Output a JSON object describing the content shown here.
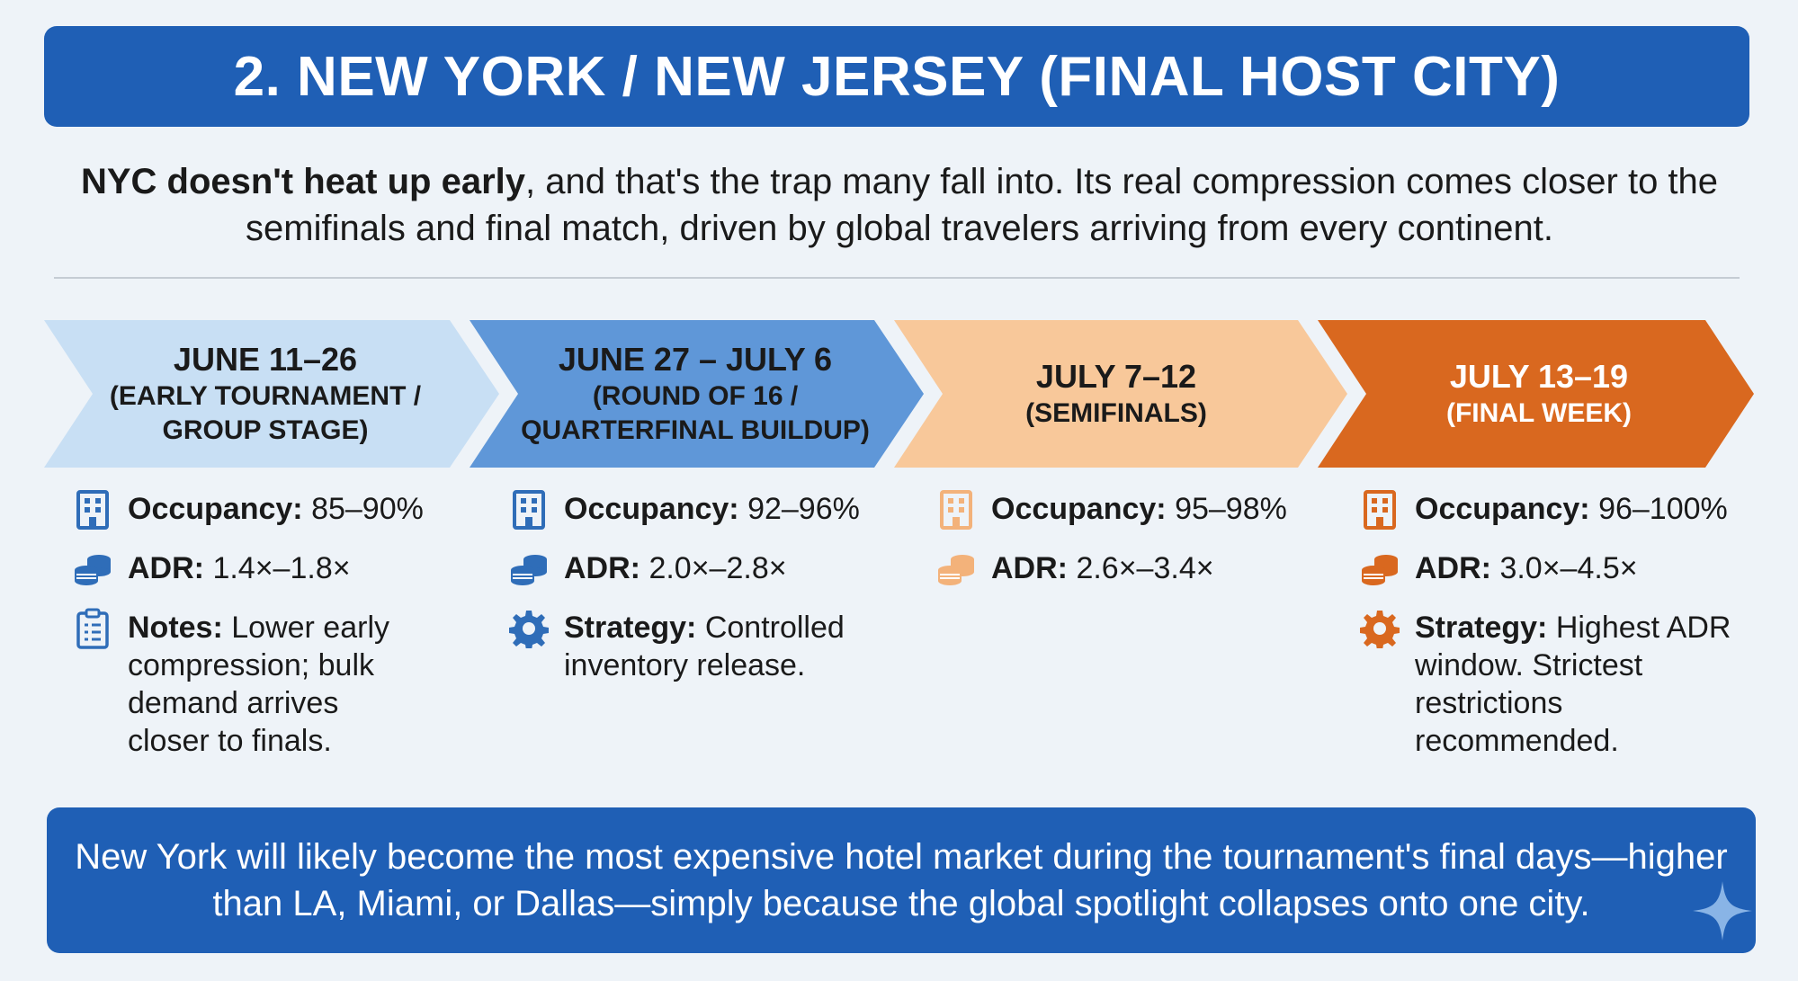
{
  "title": "2. NEW YORK / NEW JERSEY (FINAL HOST CITY)",
  "intro": {
    "bold": "NYC doesn't heat up early",
    "rest": ", and that's the trap many fall into. Its real compression comes closer to the semifinals and final match, driven by global travelers arriving from every continent."
  },
  "phases": [
    {
      "date": "JUNE 11–26",
      "sub_line1": "(EARLY TOURNAMENT /",
      "sub_line2": "GROUP STAGE)",
      "color": "#c8dff4",
      "text_color": "#1a1a1a",
      "icon_color": "#2f6db8",
      "occupancy_label": "Occupancy:",
      "occupancy": "85–90%",
      "adr_label": "ADR:",
      "adr": "1.4×–1.8×",
      "extra_label": "Notes:",
      "extra": "Lower early compression; bulk demand arrives closer to finals.",
      "extra_icon": "clipboard-icon"
    },
    {
      "date": "JUNE 27 – JULY 6",
      "sub_line1": "(ROUND OF 16 /",
      "sub_line2": "QUARTERFINAL BUILDUP)",
      "color": "#5f97d8",
      "text_color": "#1a1a1a",
      "icon_color": "#2f6db8",
      "occupancy_label": "Occupancy:",
      "occupancy": "92–96%",
      "adr_label": "ADR:",
      "adr": "2.0×–2.8×",
      "extra_label": "Strategy:",
      "extra": "Controlled inventory release.",
      "extra_icon": "gear-icon"
    },
    {
      "date": "JULY 7–12",
      "sub_line1": "(SEMIFINALS)",
      "sub_line2": "",
      "color": "#f8c89a",
      "text_color": "#1a1a1a",
      "icon_color": "#f3b27a",
      "occupancy_label": "Occupancy:",
      "occupancy": "95–98%",
      "adr_label": "ADR:",
      "adr": "2.6×–3.4×",
      "extra_label": "",
      "extra": "",
      "extra_icon": ""
    },
    {
      "date": "JULY 13–19",
      "sub_line1": "(FINAL WEEK)",
      "sub_line2": "",
      "color": "#d9681f",
      "text_color": "#ffffff",
      "icon_color": "#d9681f",
      "occupancy_label": "Occupancy:",
      "occupancy": "96–100%",
      "adr_label": "ADR:",
      "adr": "3.0×–4.5×",
      "extra_label": "Strategy:",
      "extra": "Highest ADR window. Strictest restrictions recommended.",
      "extra_icon": "gear-icon"
    }
  ],
  "footer": "New York will likely become the most expensive hotel market during the tournament's final days—higher than LA, Miami, or Dallas—simply because the global spotlight collapses onto one city."
}
